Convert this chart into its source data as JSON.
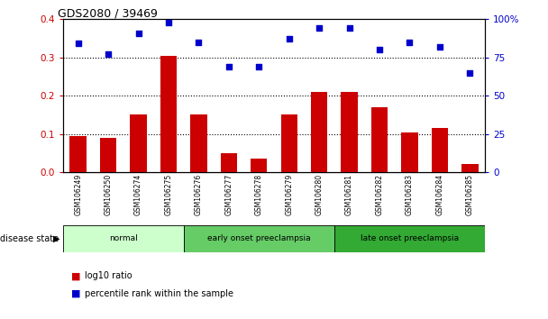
{
  "title": "GDS2080 / 39469",
  "categories": [
    "GSM106249",
    "GSM106250",
    "GSM106274",
    "GSM106275",
    "GSM106276",
    "GSM106277",
    "GSM106278",
    "GSM106279",
    "GSM106280",
    "GSM106281",
    "GSM106282",
    "GSM106283",
    "GSM106284",
    "GSM106285"
  ],
  "log10_ratio": [
    0.095,
    0.09,
    0.15,
    0.305,
    0.15,
    0.05,
    0.035,
    0.15,
    0.21,
    0.21,
    0.17,
    0.105,
    0.115,
    0.022
  ],
  "percentile_rank": [
    84,
    77,
    91,
    98,
    85,
    69,
    69,
    87,
    94,
    94,
    80,
    85,
    82,
    65
  ],
  "bar_color": "#cc0000",
  "scatter_color": "#0000cc",
  "left_yaxis_color": "#cc0000",
  "right_yaxis_color": "#0000cc",
  "left_ylim": [
    0,
    0.4
  ],
  "right_ylim": [
    0,
    100
  ],
  "left_yticks": [
    0,
    0.1,
    0.2,
    0.3,
    0.4
  ],
  "right_yticks": [
    0,
    25,
    50,
    75,
    100
  ],
  "right_yticklabels": [
    "0",
    "25",
    "50",
    "75",
    "100%"
  ],
  "groups": [
    {
      "label": "normal",
      "start": 0,
      "end": 4,
      "color": "#ccffcc"
    },
    {
      "label": "early onset preeclampsia",
      "start": 4,
      "end": 9,
      "color": "#66cc66"
    },
    {
      "label": "late onset preeclampsia",
      "start": 9,
      "end": 14,
      "color": "#33aa33"
    }
  ],
  "disease_state_label": "disease state",
  "legend_bar_label": "log10 ratio",
  "legend_scatter_label": "percentile rank within the sample",
  "background_color": "#ffffff",
  "grid_color": "#000000"
}
